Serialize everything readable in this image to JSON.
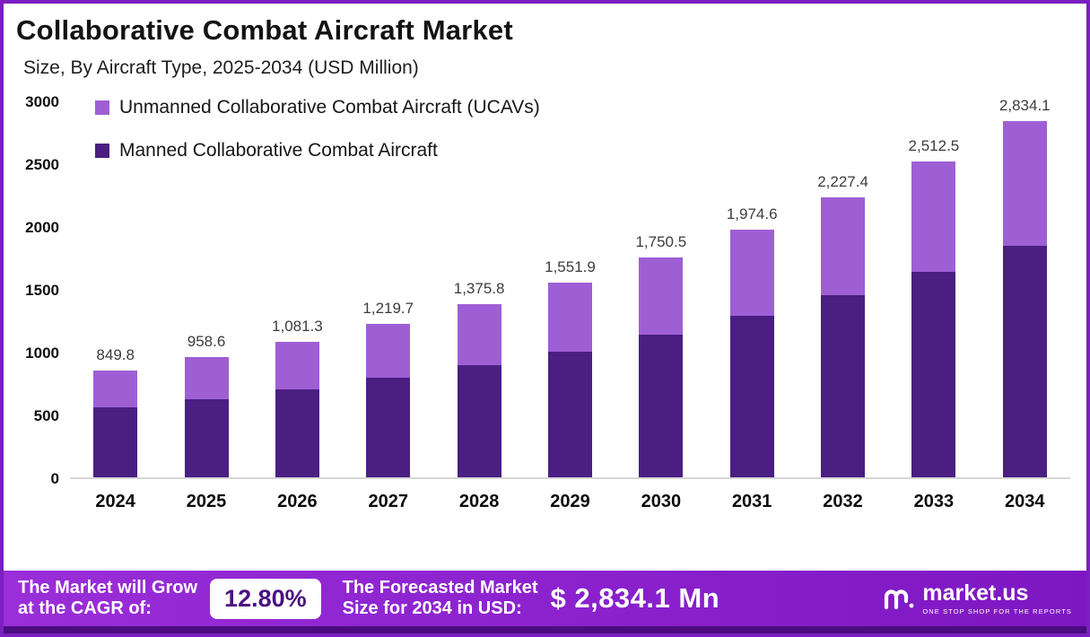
{
  "header": {
    "title": "Collaborative Combat Aircraft Market",
    "subtitle": "Size, By Aircraft Type, 2025-2034 (USD Million)"
  },
  "legend": {
    "items": [
      {
        "label": "Unmanned Collaborative Combat Aircraft (UCAVs)",
        "color": "#9e5fd4"
      },
      {
        "label": "Manned Collaborative Combat Aircraft",
        "color": "#4b1e82"
      }
    ]
  },
  "chart_data": {
    "type": "bar",
    "stacked": true,
    "title": "Collaborative Combat Aircraft Market Size, By Aircraft Type, 2025-2034 (USD Million)",
    "categories": [
      "2024",
      "2025",
      "2026",
      "2027",
      "2028",
      "2029",
      "2030",
      "2031",
      "2032",
      "2033",
      "2034"
    ],
    "series": [
      {
        "name": "Manned Collaborative Combat Aircraft",
        "color": "#4b1e82",
        "values": [
          555,
          620,
          700,
          790,
          890,
          1000,
          1135,
          1285,
          1450,
          1635,
          1845
        ]
      },
      {
        "name": "Unmanned Collaborative Combat Aircraft (UCAVs)",
        "color": "#9e5fd4",
        "values": [
          294.8,
          338.6,
          381.3,
          429.7,
          485.8,
          551.9,
          615.5,
          689.6,
          777.4,
          877.5,
          989.1
        ]
      }
    ],
    "totals": [
      849.8,
      958.6,
      1081.3,
      1219.7,
      1375.8,
      1551.9,
      1750.5,
      1974.6,
      2227.4,
      2512.5,
      2834.1
    ],
    "total_labels": [
      "849.8",
      "958.6",
      "1,081.3",
      "1,219.7",
      "1,375.8",
      "1,551.9",
      "1,750.5",
      "1,974.6",
      "2,227.4",
      "2,512.5",
      "2,834.1"
    ],
    "ylabel": "",
    "xlabel": "",
    "ylim": [
      0,
      3000
    ],
    "yticks": [
      0,
      500,
      1000,
      1500,
      2000,
      2500,
      3000
    ],
    "grid": false,
    "legend_position": "top-left"
  },
  "footer": {
    "cagr_label_line1": "The Market will Grow",
    "cagr_label_line2": "at the CAGR of:",
    "cagr_value": "12.80%",
    "forecast_label_line1": "The Forecasted Market",
    "forecast_label_line2": "Size for 2034 in USD:",
    "forecast_value": "$ 2,834.1 Mn",
    "brand": {
      "name": "market.us",
      "tagline": "ONE STOP SHOP FOR THE REPORTS"
    }
  },
  "colors": {
    "frame_border": "#7b1fc0",
    "footer_background": "#8a21cd",
    "footer_strip": "#4c0d80",
    "ucav_segment": "#9e5fd4",
    "manned_segment": "#4b1e82",
    "axis_line": "#d6d6d6"
  }
}
